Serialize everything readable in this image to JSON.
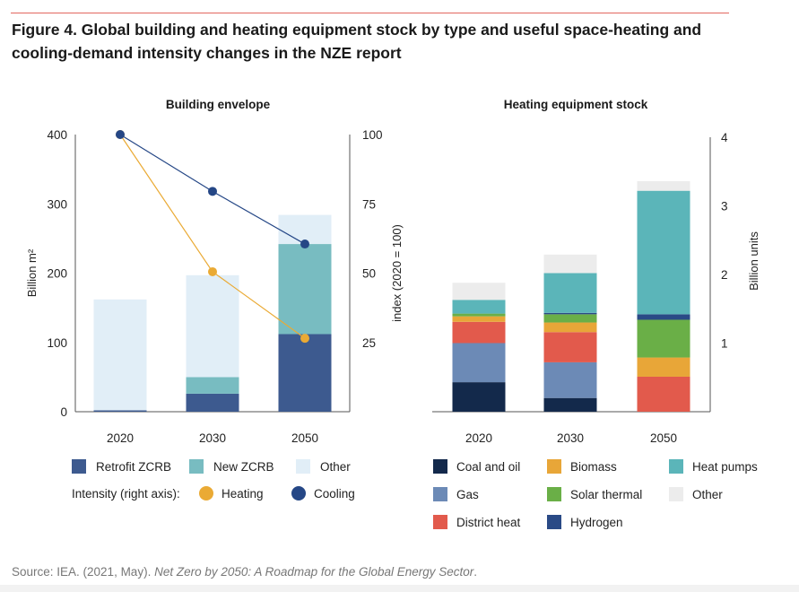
{
  "figure": {
    "title": "Figure 4. Global building and heating equipment stock by type and useful space-heating and cooling-demand intensity changes in the NZE report",
    "source_prefix": "Source: IEA. (2021, May). ",
    "source_title": "Net Zero by 2050: A Roadmap for the Global Energy Sector",
    "source_suffix": "."
  },
  "colors": {
    "retrofit": "#3d5a8f",
    "new_zcrb": "#78bcc1",
    "other_env": "#e1eef7",
    "heating": "#eaaa34",
    "cooling": "#254786",
    "coal": "#13294b",
    "gas": "#6c8ab6",
    "district": "#e25a4c",
    "biomass": "#e8a638",
    "solar": "#6aaf47",
    "hydrogen": "#2a4a86",
    "heatpumps": "#5bb5b9",
    "other_eq": "#ececec"
  },
  "chart_data": [
    {
      "type": "bar",
      "stacked": true,
      "title": "Building envelope",
      "categories": [
        "2020",
        "2030",
        "2050"
      ],
      "ylabel": "Billion m²",
      "ylim": [
        0,
        400
      ],
      "yticks": [
        "0",
        "100",
        "200",
        "300",
        "400"
      ],
      "y2label": "index (2020 = 100)",
      "y2lim": [
        0,
        100
      ],
      "y2ticks": [
        "25",
        "50",
        "75",
        "100"
      ],
      "series": [
        {
          "name": "Retrofit ZCRB",
          "values": [
            2,
            26,
            112
          ]
        },
        {
          "name": "New ZCRB",
          "values": [
            0,
            24,
            130
          ]
        },
        {
          "name": "Other",
          "values": [
            160,
            147,
            42
          ]
        }
      ],
      "line_series": [
        {
          "name": "Heating",
          "values": [
            100,
            50.5,
            26.5
          ]
        },
        {
          "name": "Cooling",
          "values": [
            100,
            79.5,
            60.5
          ]
        }
      ],
      "legend_intensity_label": "Intensity (right axis):",
      "legend": "bottom"
    },
    {
      "type": "bar",
      "stacked": true,
      "title": "Heating equipment stock",
      "categories": [
        "2020",
        "2030",
        "2050"
      ],
      "ylabel": "Billion units",
      "ylim": [
        0,
        4
      ],
      "yticks": [
        "1",
        "2",
        "3",
        "4"
      ],
      "series": [
        {
          "name": "Coal and oil",
          "values": [
            0.43,
            0.2,
            0
          ]
        },
        {
          "name": "Gas",
          "values": [
            0.57,
            0.52,
            0
          ]
        },
        {
          "name": "District heat",
          "values": [
            0.31,
            0.44,
            0.51
          ]
        },
        {
          "name": "Biomass",
          "values": [
            0.08,
            0.14,
            0.28
          ]
        },
        {
          "name": "Solar thermal",
          "values": [
            0.04,
            0.12,
            0.55
          ]
        },
        {
          "name": "Hydrogen",
          "values": [
            0,
            0.02,
            0.08
          ]
        },
        {
          "name": "Heat pumps",
          "values": [
            0.2,
            0.58,
            1.8
          ]
        },
        {
          "name": "Other",
          "values": [
            0.25,
            0.27,
            0.14
          ]
        }
      ],
      "legend": "bottom"
    }
  ]
}
